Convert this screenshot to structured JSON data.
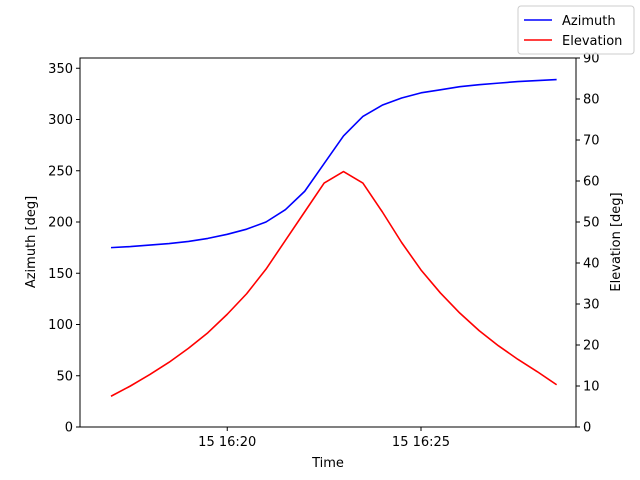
{
  "chart_data": {
    "type": "line",
    "xlabel": "Time",
    "x_ticks": [
      "15 16:20",
      "15 16:25"
    ],
    "y_left": {
      "label": "Azimuth [deg]",
      "ylim": [
        0,
        360
      ],
      "ticks": [
        0,
        50,
        100,
        150,
        200,
        250,
        300,
        350
      ]
    },
    "y_right": {
      "label": "Elevation [deg]",
      "ylim": [
        0,
        90
      ],
      "ticks": [
        0,
        10,
        20,
        30,
        40,
        50,
        60,
        70,
        80,
        90
      ]
    },
    "x_minutes_ticks": [
      20,
      25
    ],
    "legend": {
      "placement": "top-right",
      "entries": [
        "Azimuth",
        "Elevation"
      ]
    },
    "series": [
      {
        "name": "Azimuth",
        "axis": "left",
        "color": "#0000ff",
        "x_minutes": [
          17.0,
          17.5,
          18.0,
          18.5,
          19.0,
          19.5,
          20.0,
          20.5,
          21.0,
          21.5,
          22.0,
          22.5,
          23.0,
          23.5,
          24.0,
          24.5,
          25.0,
          25.5,
          26.0,
          26.5,
          27.0,
          27.5,
          28.0,
          28.5
        ],
        "values": [
          175,
          176,
          177.5,
          179,
          181,
          184,
          188,
          193,
          200,
          212,
          230,
          257,
          284,
          303,
          314,
          321,
          326,
          329,
          332,
          334,
          335.5,
          337,
          338,
          339
        ]
      },
      {
        "name": "Elevation",
        "axis": "right",
        "color": "#ff0000",
        "x_minutes": [
          17.0,
          17.5,
          18.0,
          18.5,
          19.0,
          19.5,
          20.0,
          20.5,
          21.0,
          21.5,
          22.0,
          22.5,
          23.0,
          23.5,
          24.0,
          24.5,
          25.0,
          25.5,
          26.0,
          26.5,
          27.0,
          27.5,
          28.0,
          28.5
        ],
        "values": [
          7.5,
          10,
          12.8,
          15.8,
          19.2,
          23,
          27.5,
          32.5,
          38.5,
          45.5,
          52.5,
          59.5,
          62.3,
          59.5,
          52.5,
          45,
          38.3,
          32.7,
          27.8,
          23.5,
          19.8,
          16.5,
          13.5,
          10.3
        ]
      }
    ]
  }
}
